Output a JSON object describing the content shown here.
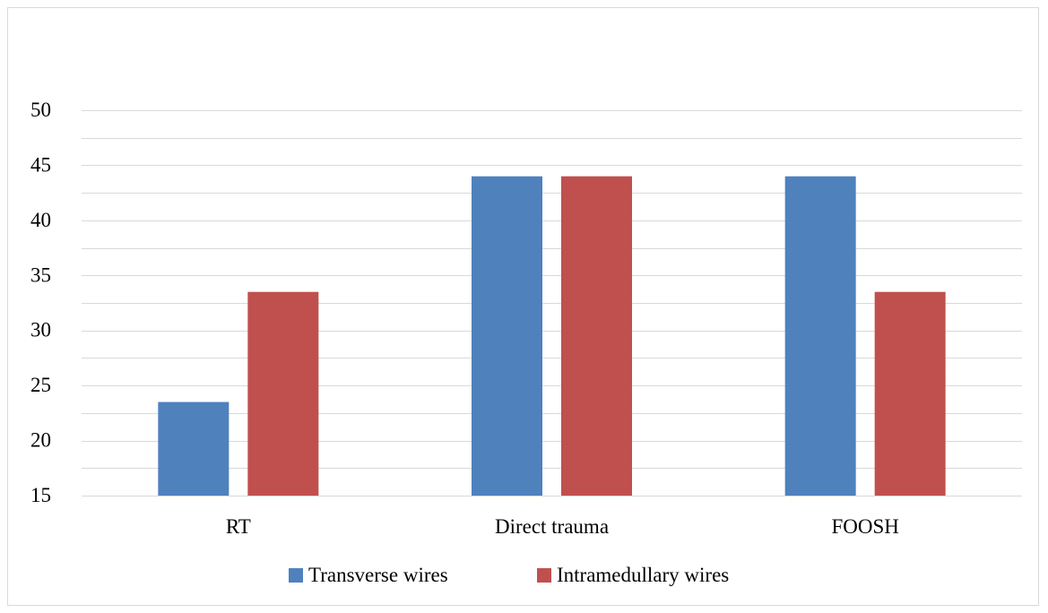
{
  "chart_data": {
    "type": "bar",
    "title": "",
    "xlabel": "",
    "ylabel": "",
    "categories": [
      "RT",
      "Direct trauma",
      "FOOSH"
    ],
    "series": [
      {
        "name": "Transverse wires",
        "values": [
          23.5,
          44.0,
          44.0
        ],
        "color": "#4f81bd"
      },
      {
        "name": "Intramedullary wires",
        "values": [
          33.5,
          44.0,
          33.5
        ],
        "color": "#c0504d"
      }
    ],
    "ylim": [
      15,
      50
    ],
    "yticks_labeled": [
      15,
      20,
      25,
      30,
      35,
      40,
      45,
      50
    ],
    "grid": true,
    "gridline_color": "#d9d9d9",
    "legend_position": "bottom"
  }
}
